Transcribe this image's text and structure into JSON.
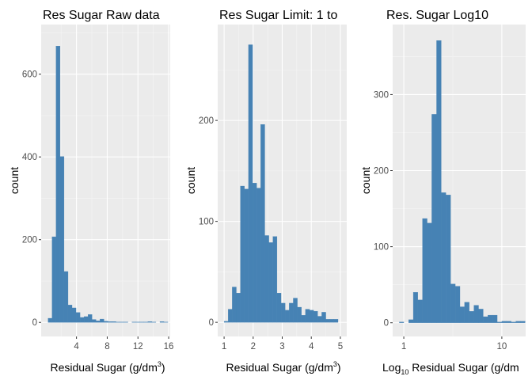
{
  "chart_data": [
    {
      "type": "bar",
      "title": "Res Sugar Raw data",
      "ylabel": "count",
      "xlabel": {
        "pre": "Residual Sugar (g",
        "slash": "/",
        "unit": "dm",
        "sup": "3",
        "post": ")"
      },
      "xlim": [
        -0.6,
        16.2
      ],
      "ylim": [
        -34,
        720
      ],
      "xticks": [
        4,
        8,
        12,
        16
      ],
      "xtick_labels": [
        "4",
        "8",
        "12",
        "16"
      ],
      "yticks": [
        0,
        200,
        400,
        600
      ],
      "ytick_labels": [
        "0",
        "200",
        "400",
        "600"
      ],
      "grid": true,
      "bar_color": "#4682B4",
      "bins": [
        {
          "x0": 0.3,
          "x1": 0.82,
          "count": 10
        },
        {
          "x0": 0.82,
          "x1": 1.34,
          "count": 207
        },
        {
          "x0": 1.34,
          "x1": 1.86,
          "count": 668
        },
        {
          "x0": 1.86,
          "x1": 2.38,
          "count": 401
        },
        {
          "x0": 2.38,
          "x1": 2.9,
          "count": 123
        },
        {
          "x0": 2.9,
          "x1": 3.42,
          "count": 42
        },
        {
          "x0": 3.42,
          "x1": 3.94,
          "count": 35
        },
        {
          "x0": 3.94,
          "x1": 4.46,
          "count": 24
        },
        {
          "x0": 4.46,
          "x1": 4.98,
          "count": 12
        },
        {
          "x0": 4.98,
          "x1": 5.5,
          "count": 14
        },
        {
          "x0": 5.5,
          "x1": 6.02,
          "count": 19
        },
        {
          "x0": 6.02,
          "x1": 6.54,
          "count": 7
        },
        {
          "x0": 6.54,
          "x1": 7.06,
          "count": 4
        },
        {
          "x0": 7.06,
          "x1": 7.58,
          "count": 8
        },
        {
          "x0": 7.58,
          "x1": 8.1,
          "count": 3
        },
        {
          "x0": 8.1,
          "x1": 8.62,
          "count": 2
        },
        {
          "x0": 8.62,
          "x1": 9.14,
          "count": 2
        },
        {
          "x0": 9.14,
          "x1": 9.66,
          "count": 1
        },
        {
          "x0": 9.66,
          "x1": 10.18,
          "count": 1
        },
        {
          "x0": 10.18,
          "x1": 10.7,
          "count": 1
        },
        {
          "x0": 10.7,
          "x1": 11.22,
          "count": 0
        },
        {
          "x0": 11.22,
          "x1": 11.74,
          "count": 1
        },
        {
          "x0": 11.74,
          "x1": 12.26,
          "count": 1
        },
        {
          "x0": 12.26,
          "x1": 12.78,
          "count": 1
        },
        {
          "x0": 12.78,
          "x1": 13.3,
          "count": 1
        },
        {
          "x0": 13.3,
          "x1": 13.82,
          "count": 2
        },
        {
          "x0": 13.82,
          "x1": 14.34,
          "count": 1
        },
        {
          "x0": 14.34,
          "x1": 14.86,
          "count": 0
        },
        {
          "x0": 14.86,
          "x1": 15.38,
          "count": 2
        },
        {
          "x0": 15.38,
          "x1": 15.9,
          "count": 1
        }
      ]
    },
    {
      "type": "bar",
      "title": "Res Sugar Limit: 1 to",
      "ylabel": "count",
      "xlabel": {
        "pre": "Residual Sugar (g",
        "slash": "/",
        "unit": "dm",
        "sup": "3",
        "post": ")"
      },
      "xlim": [
        0.78,
        5.22
      ],
      "ylim": [
        -14,
        295
      ],
      "xticks": [
        1,
        2,
        3,
        4,
        5
      ],
      "xtick_labels": [
        "1",
        "2",
        "3",
        "4",
        "5"
      ],
      "yticks": [
        0,
        100,
        200
      ],
      "ytick_labels": [
        "0",
        "100",
        "200"
      ],
      "grid": true,
      "bar_color": "#4682B4",
      "bins": [
        {
          "x0": 1.0,
          "x1": 1.14,
          "count": 1
        },
        {
          "x0": 1.14,
          "x1": 1.28,
          "count": 13
        },
        {
          "x0": 1.28,
          "x1": 1.42,
          "count": 35
        },
        {
          "x0": 1.42,
          "x1": 1.56,
          "count": 29
        },
        {
          "x0": 1.56,
          "x1": 1.7,
          "count": 135
        },
        {
          "x0": 1.7,
          "x1": 1.84,
          "count": 132
        },
        {
          "x0": 1.84,
          "x1": 1.98,
          "count": 275
        },
        {
          "x0": 1.98,
          "x1": 2.12,
          "count": 138
        },
        {
          "x0": 2.12,
          "x1": 2.26,
          "count": 133
        },
        {
          "x0": 2.26,
          "x1": 2.4,
          "count": 196
        },
        {
          "x0": 2.4,
          "x1": 2.54,
          "count": 86
        },
        {
          "x0": 2.54,
          "x1": 2.68,
          "count": 79
        },
        {
          "x0": 2.68,
          "x1": 2.82,
          "count": 85
        },
        {
          "x0": 2.82,
          "x1": 2.96,
          "count": 29
        },
        {
          "x0": 2.96,
          "x1": 3.1,
          "count": 19
        },
        {
          "x0": 3.1,
          "x1": 3.24,
          "count": 12
        },
        {
          "x0": 3.24,
          "x1": 3.38,
          "count": 19
        },
        {
          "x0": 3.38,
          "x1": 3.52,
          "count": 24
        },
        {
          "x0": 3.52,
          "x1": 3.66,
          "count": 15
        },
        {
          "x0": 3.66,
          "x1": 3.8,
          "count": 7
        },
        {
          "x0": 3.8,
          "x1": 3.94,
          "count": 13
        },
        {
          "x0": 3.94,
          "x1": 4.08,
          "count": 12
        },
        {
          "x0": 4.08,
          "x1": 4.22,
          "count": 11
        },
        {
          "x0": 4.22,
          "x1": 4.36,
          "count": 6
        },
        {
          "x0": 4.36,
          "x1": 4.5,
          "count": 10
        },
        {
          "x0": 4.5,
          "x1": 4.64,
          "count": 3
        },
        {
          "x0": 4.64,
          "x1": 4.78,
          "count": 3
        },
        {
          "x0": 4.78,
          "x1": 4.92,
          "count": 3
        }
      ]
    },
    {
      "type": "bar",
      "title": "Res. Sugar Log10",
      "ylabel": "count",
      "xlabel": {
        "pre": "Log",
        "sub": "10",
        "post": " Residual Sugar (g/dm"
      },
      "xscale": "log10",
      "xlim": [
        0.77,
        17.5
      ],
      "ylim": [
        -18,
        392
      ],
      "xticks": [
        1,
        10
      ],
      "xtick_labels": [
        "1",
        "10"
      ],
      "yticks": [
        0,
        100,
        200,
        300
      ],
      "ytick_labels": [
        "0",
        "100",
        "200",
        "300"
      ],
      "grid": true,
      "bar_color": "#4682B4",
      "bins": [
        {
          "x0": 0.9,
          "x1": 1.0,
          "count": 1
        },
        {
          "x0": 1.0,
          "x1": 1.12,
          "count": 0
        },
        {
          "x0": 1.12,
          "x1": 1.25,
          "count": 4
        },
        {
          "x0": 1.25,
          "x1": 1.39,
          "count": 40
        },
        {
          "x0": 1.39,
          "x1": 1.55,
          "count": 30
        },
        {
          "x0": 1.55,
          "x1": 1.73,
          "count": 137
        },
        {
          "x0": 1.73,
          "x1": 1.93,
          "count": 131
        },
        {
          "x0": 1.93,
          "x1": 2.16,
          "count": 274
        },
        {
          "x0": 2.16,
          "x1": 2.41,
          "count": 371
        },
        {
          "x0": 2.41,
          "x1": 2.69,
          "count": 171
        },
        {
          "x0": 2.69,
          "x1": 3.0,
          "count": 168
        },
        {
          "x0": 3.0,
          "x1": 3.35,
          "count": 51
        },
        {
          "x0": 3.35,
          "x1": 3.74,
          "count": 48
        },
        {
          "x0": 3.74,
          "x1": 4.17,
          "count": 21
        },
        {
          "x0": 4.17,
          "x1": 4.65,
          "count": 27
        },
        {
          "x0": 4.65,
          "x1": 5.19,
          "count": 15
        },
        {
          "x0": 5.19,
          "x1": 5.79,
          "count": 23
        },
        {
          "x0": 5.79,
          "x1": 6.46,
          "count": 18
        },
        {
          "x0": 6.46,
          "x1": 7.21,
          "count": 8
        },
        {
          "x0": 7.21,
          "x1": 8.04,
          "count": 10
        },
        {
          "x0": 8.04,
          "x1": 8.97,
          "count": 10
        },
        {
          "x0": 8.97,
          "x1": 10.01,
          "count": 1
        },
        {
          "x0": 10.01,
          "x1": 11.17,
          "count": 2
        },
        {
          "x0": 11.17,
          "x1": 12.46,
          "count": 2
        },
        {
          "x0": 12.46,
          "x1": 13.9,
          "count": 1
        },
        {
          "x0": 13.9,
          "x1": 15.51,
          "count": 2
        },
        {
          "x0": 15.51,
          "x1": 17.3,
          "count": 2
        }
      ]
    }
  ]
}
